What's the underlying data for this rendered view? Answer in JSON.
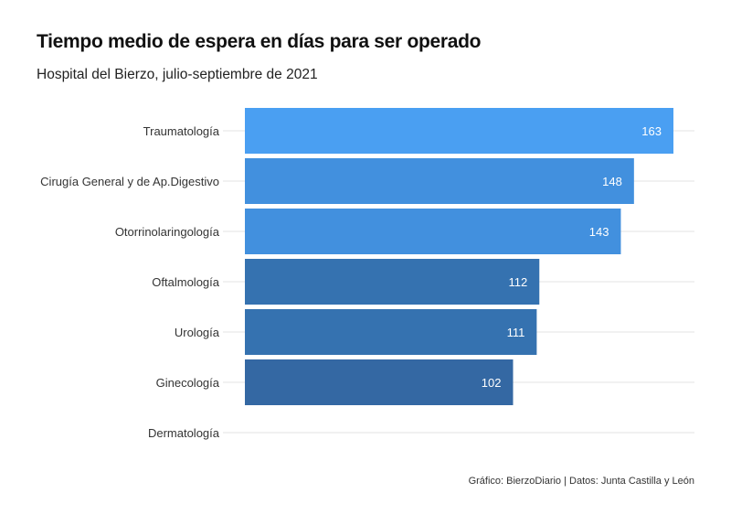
{
  "title": "Tiempo medio de espera en días para ser operado",
  "subtitle": "Hospital del Bierzo, julio-septiembre de 2021",
  "footer": "Gráfico: BierzoDiario | Datos: Junta Castilla y León",
  "colors": {
    "light": "#4a9ff2",
    "medium": "#4290de",
    "dark": "#3572b0",
    "darker": "#3468a3",
    "grid": "#e3e3e3",
    "label": "#333333",
    "value_text": "#ffffff"
  },
  "chart_data": {
    "type": "bar",
    "orientation": "horizontal",
    "categories": [
      "Traumatología",
      "Cirugía General y de Ap.Digestivo",
      "Otorrinolaringología",
      "Oftalmología",
      "Urología",
      "Ginecología",
      "Dermatología"
    ],
    "values": [
      163,
      148,
      143,
      112,
      111,
      102,
      null
    ],
    "value_labels": [
      "163",
      "148",
      "143",
      "112",
      "111",
      "102",
      ""
    ],
    "bar_colors": [
      "#4a9ff2",
      "#4290de",
      "#4290de",
      "#3572b0",
      "#3572b0",
      "#3468a3",
      "#3468a3"
    ],
    "xlim": [
      0,
      170
    ],
    "grid": true,
    "legend": "none"
  }
}
